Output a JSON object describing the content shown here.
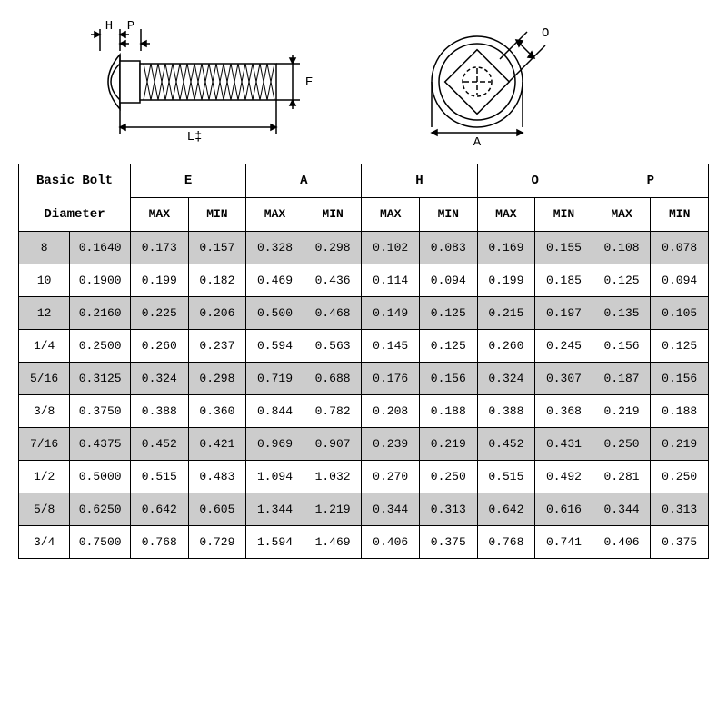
{
  "diagram": {
    "labels": {
      "H": "H",
      "P": "P",
      "E": "E",
      "L": "L‡",
      "O": "O",
      "A": "A"
    },
    "stroke_color": "#000000",
    "background": "#ffffff"
  },
  "table": {
    "header": {
      "basic_bolt": "Basic Bolt",
      "diameter": "Diameter",
      "columns": [
        "E",
        "A",
        "H",
        "O",
        "P"
      ],
      "sub": {
        "max": "MAX",
        "min": "MIN"
      }
    },
    "row_shade_color": "#cccccc",
    "rows": [
      {
        "size": "8",
        "dec": "0.1640",
        "vals": [
          "0.173",
          "0.157",
          "0.328",
          "0.298",
          "0.102",
          "0.083",
          "0.169",
          "0.155",
          "0.108",
          "0.078"
        ],
        "shaded": true
      },
      {
        "size": "10",
        "dec": "0.1900",
        "vals": [
          "0.199",
          "0.182",
          "0.469",
          "0.436",
          "0.114",
          "0.094",
          "0.199",
          "0.185",
          "0.125",
          "0.094"
        ],
        "shaded": false
      },
      {
        "size": "12",
        "dec": "0.2160",
        "vals": [
          "0.225",
          "0.206",
          "0.500",
          "0.468",
          "0.149",
          "0.125",
          "0.215",
          "0.197",
          "0.135",
          "0.105"
        ],
        "shaded": true
      },
      {
        "size": "1/4",
        "dec": "0.2500",
        "vals": [
          "0.260",
          "0.237",
          "0.594",
          "0.563",
          "0.145",
          "0.125",
          "0.260",
          "0.245",
          "0.156",
          "0.125"
        ],
        "shaded": false
      },
      {
        "size": "5/16",
        "dec": "0.3125",
        "vals": [
          "0.324",
          "0.298",
          "0.719",
          "0.688",
          "0.176",
          "0.156",
          "0.324",
          "0.307",
          "0.187",
          "0.156"
        ],
        "shaded": true
      },
      {
        "size": "3/8",
        "dec": "0.3750",
        "vals": [
          "0.388",
          "0.360",
          "0.844",
          "0.782",
          "0.208",
          "0.188",
          "0.388",
          "0.368",
          "0.219",
          "0.188"
        ],
        "shaded": false
      },
      {
        "size": "7/16",
        "dec": "0.4375",
        "vals": [
          "0.452",
          "0.421",
          "0.969",
          "0.907",
          "0.239",
          "0.219",
          "0.452",
          "0.431",
          "0.250",
          "0.219"
        ],
        "shaded": true
      },
      {
        "size": "1/2",
        "dec": "0.5000",
        "vals": [
          "0.515",
          "0.483",
          "1.094",
          "1.032",
          "0.270",
          "0.250",
          "0.515",
          "0.492",
          "0.281",
          "0.250"
        ],
        "shaded": false
      },
      {
        "size": "5/8",
        "dec": "0.6250",
        "vals": [
          "0.642",
          "0.605",
          "1.344",
          "1.219",
          "0.344",
          "0.313",
          "0.642",
          "0.616",
          "0.344",
          "0.313"
        ],
        "shaded": true
      },
      {
        "size": "3/4",
        "dec": "0.7500",
        "vals": [
          "0.768",
          "0.729",
          "1.594",
          "1.469",
          "0.406",
          "0.375",
          "0.768",
          "0.741",
          "0.406",
          "0.375"
        ],
        "shaded": false
      }
    ]
  }
}
